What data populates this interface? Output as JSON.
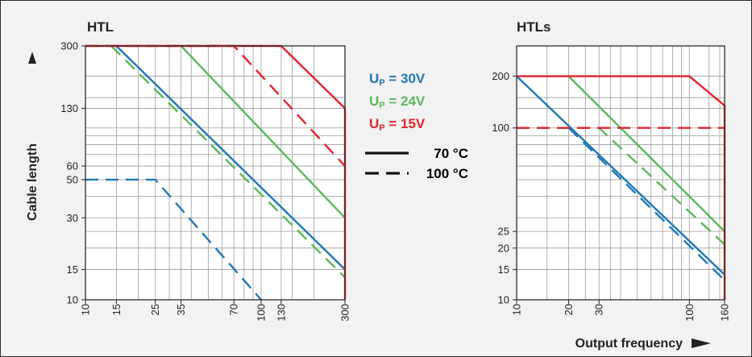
{
  "colors": {
    "blue": "#1f78b4",
    "green": "#5cb85c",
    "red": "#e3232c",
    "grid": "#9b9b9b",
    "frame": "#2b2b2b",
    "background": "#f2f2f2"
  },
  "ylabel": "Cable length",
  "xlabel": "Output frequency",
  "legend": {
    "voltages": [
      {
        "prefix": "U",
        "sub": "P",
        "text": " = 30V",
        "color": "#1f78b4"
      },
      {
        "prefix": "U",
        "sub": "P",
        "text": " = 24V",
        "color": "#5cb85c"
      },
      {
        "prefix": "U",
        "sub": "P",
        "text": " = 15V",
        "color": "#e3232c"
      }
    ],
    "temps": [
      {
        "label": "70 °C",
        "style": "solid"
      },
      {
        "label": "100 °C",
        "style": "dashed"
      }
    ]
  },
  "chart_data": [
    {
      "type": "line",
      "title": "HTL",
      "xscale": "log",
      "yscale": "log",
      "xlim": [
        10,
        300
      ],
      "ylim": [
        10,
        300
      ],
      "x_ticks": [
        "10",
        "15",
        "25",
        "35",
        "70",
        "100",
        "130",
        "300"
      ],
      "x_tick_values": [
        10,
        15,
        25,
        35,
        70,
        100,
        130,
        300
      ],
      "y_ticks": [
        "300",
        "130",
        "60",
        "50",
        "30",
        "15",
        "10"
      ],
      "y_tick_values": [
        300,
        130,
        60,
        50,
        30,
        15,
        10
      ],
      "series": [
        {
          "voltage": "30V",
          "temperature": "70 °C",
          "color": "#1f78b4",
          "style": "solid",
          "x": [
            15,
            300
          ],
          "y": [
            300,
            15
          ]
        },
        {
          "voltage": "30V",
          "temperature": "100 °C",
          "color": "#1f78b4",
          "style": "dashed",
          "x": [
            10,
            25,
            100
          ],
          "y": [
            50,
            50,
            10
          ]
        },
        {
          "voltage": "24V",
          "temperature": "70 °C",
          "color": "#5cb85c",
          "style": "solid",
          "x": [
            35,
            300
          ],
          "y": [
            300,
            30
          ]
        },
        {
          "voltage": "24V",
          "temperature": "100 °C",
          "color": "#5cb85c",
          "style": "dashed",
          "x": [
            14,
            300
          ],
          "y": [
            300,
            13.5
          ]
        },
        {
          "voltage": "15V",
          "temperature": "70 °C",
          "color": "#e3232c",
          "style": "solid",
          "x": [
            10,
            130,
            300,
            300
          ],
          "y": [
            300,
            300,
            130,
            10
          ]
        },
        {
          "voltage": "15V",
          "temperature": "100 °C",
          "color": "#e3232c",
          "style": "dashed",
          "x": [
            10,
            70,
            300
          ],
          "y": [
            300,
            300,
            60
          ]
        }
      ]
    },
    {
      "type": "line",
      "title": "HTLs",
      "xscale": "log",
      "yscale": "log",
      "xlim": [
        10,
        160
      ],
      "ylim": [
        10,
        300
      ],
      "x_ticks": [
        "10",
        "20",
        "30",
        "100",
        "160"
      ],
      "x_tick_values": [
        10,
        20,
        30,
        100,
        160
      ],
      "y_ticks": [
        "200",
        "100",
        "25",
        "20",
        "15",
        "10"
      ],
      "y_tick_values": [
        200,
        100,
        25,
        20,
        15,
        10
      ],
      "series": [
        {
          "voltage": "30V",
          "temperature": "70 °C",
          "color": "#1f78b4",
          "style": "solid",
          "x": [
            10,
            160
          ],
          "y": [
            200,
            14
          ]
        },
        {
          "voltage": "30V",
          "temperature": "100 °C",
          "color": "#1f78b4",
          "style": "dashed",
          "x": [
            20,
            160
          ],
          "y": [
            100,
            13
          ]
        },
        {
          "voltage": "24V",
          "temperature": "70 °C",
          "color": "#5cb85c",
          "style": "solid",
          "x": [
            20,
            160
          ],
          "y": [
            200,
            25
          ]
        },
        {
          "voltage": "24V",
          "temperature": "100 °C",
          "color": "#5cb85c",
          "style": "dashed",
          "x": [
            10,
            30,
            160
          ],
          "y": [
            100,
            100,
            21
          ]
        },
        {
          "voltage": "15V",
          "temperature": "70 °C",
          "color": "#e3232c",
          "style": "solid",
          "x": [
            10,
            100,
            160,
            160
          ],
          "y": [
            200,
            200,
            135,
            10
          ]
        },
        {
          "voltage": "15V",
          "temperature": "100 °C",
          "color": "#e3232c",
          "style": "dashed",
          "x": [
            10,
            160
          ],
          "y": [
            100,
            100
          ]
        }
      ]
    }
  ]
}
